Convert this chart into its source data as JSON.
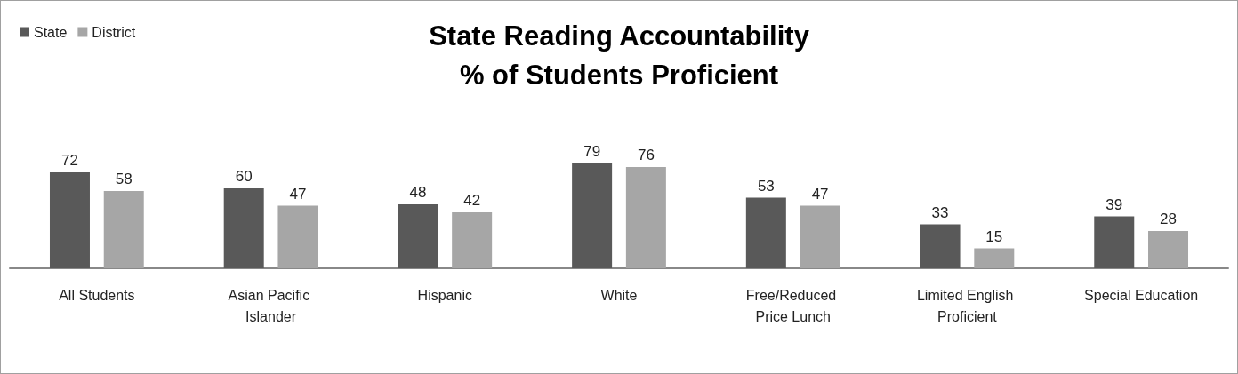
{
  "chart_data": {
    "type": "bar",
    "title": "State Reading Accountability\n% of Students Proficient",
    "categories": [
      "All Students",
      "Asian Pacific Islander",
      "Hispanic",
      "White",
      "Free/Reduced Price Lunch",
      "Limited English Proficient",
      "Special Education"
    ],
    "series": [
      {
        "name": "State",
        "color": "#595959",
        "values": [
          72,
          60,
          48,
          79,
          53,
          33,
          39
        ]
      },
      {
        "name": "District",
        "color": "#a6a6a6",
        "values": [
          58,
          47,
          42,
          76,
          47,
          15,
          28
        ]
      }
    ],
    "data_labels": true,
    "legend": "top left"
  }
}
